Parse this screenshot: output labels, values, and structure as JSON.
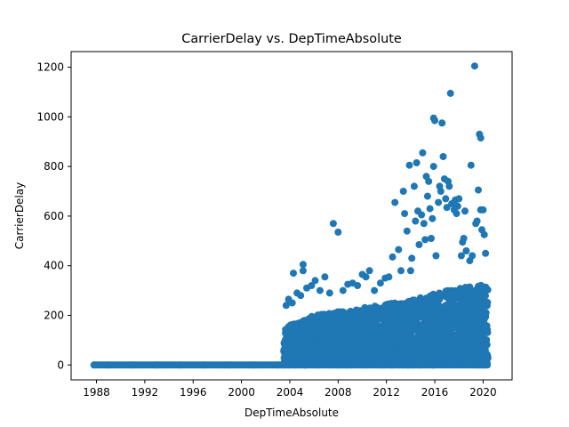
{
  "chart_data": {
    "type": "scatter",
    "title": "CarrierDelay vs. DepTimeAbsolute",
    "xlabel": "DepTimeAbsolute",
    "ylabel": "CarrierDelay",
    "xlim": [
      1985.9,
      2022.4
    ],
    "ylim": [
      -60.0,
      1263.0
    ],
    "xticks": [
      1988,
      1992,
      1996,
      2000,
      2004,
      2008,
      2012,
      2016,
      2020
    ],
    "xtick_labels": [
      "1988",
      "1992",
      "1996",
      "2000",
      "2004",
      "2008",
      "2012",
      "2016",
      "2020"
    ],
    "yticks": [
      0,
      200,
      400,
      600,
      800,
      1000,
      1200
    ],
    "ytick_labels": [
      "0",
      "200",
      "400",
      "600",
      "800",
      "1000",
      "1200"
    ],
    "grid": false,
    "legend": "none",
    "marker_color": "#1f77b4",
    "series": [
      {
        "points": [
          [
            1987.8,
            0
          ],
          [
            1989.0,
            0
          ],
          [
            1991.0,
            0
          ],
          [
            1993.0,
            0
          ],
          [
            1995.0,
            0
          ],
          [
            1997.0,
            0
          ],
          [
            1999.0,
            0
          ],
          [
            2001.0,
            0
          ],
          [
            2003.0,
            0
          ],
          [
            2003.5,
            0
          ],
          [
            2003.7,
            240
          ],
          [
            2003.9,
            265
          ],
          [
            2004.2,
            250
          ],
          [
            2004.3,
            370
          ],
          [
            2004.6,
            290
          ],
          [
            2004.9,
            280
          ],
          [
            2005.1,
            405
          ],
          [
            2005.1,
            380
          ],
          [
            2005.4,
            310
          ],
          [
            2005.8,
            320
          ],
          [
            2006.1,
            340
          ],
          [
            2006.5,
            300
          ],
          [
            2006.9,
            355
          ],
          [
            2007.3,
            290
          ],
          [
            2007.6,
            570
          ],
          [
            2008.0,
            535
          ],
          [
            2008.4,
            300
          ],
          [
            2008.8,
            325
          ],
          [
            2009.2,
            330
          ],
          [
            2009.6,
            320
          ],
          [
            2010.0,
            365
          ],
          [
            2010.3,
            355
          ],
          [
            2010.6,
            380
          ],
          [
            2011.0,
            300
          ],
          [
            2011.5,
            330
          ],
          [
            2011.9,
            350
          ],
          [
            2012.2,
            355
          ],
          [
            2012.5,
            435
          ],
          [
            2012.7,
            655
          ],
          [
            2013.0,
            465
          ],
          [
            2013.2,
            380
          ],
          [
            2013.4,
            700
          ],
          [
            2013.5,
            610
          ],
          [
            2013.7,
            540
          ],
          [
            2013.9,
            805
          ],
          [
            2014.0,
            380
          ],
          [
            2014.1,
            430
          ],
          [
            2014.3,
            720
          ],
          [
            2014.4,
            580
          ],
          [
            2014.5,
            815
          ],
          [
            2014.6,
            620
          ],
          [
            2014.7,
            485
          ],
          [
            2014.9,
            605
          ],
          [
            2015.0,
            855
          ],
          [
            2015.1,
            570
          ],
          [
            2015.2,
            505
          ],
          [
            2015.3,
            760
          ],
          [
            2015.4,
            680
          ],
          [
            2015.5,
            740
          ],
          [
            2015.6,
            630
          ],
          [
            2015.7,
            510
          ],
          [
            2015.8,
            590
          ],
          [
            2015.9,
            800
          ],
          [
            2015.9,
            995
          ],
          [
            2016.0,
            985
          ],
          [
            2016.1,
            440
          ],
          [
            2016.3,
            655
          ],
          [
            2016.4,
            720
          ],
          [
            2016.5,
            700
          ],
          [
            2016.6,
            975
          ],
          [
            2016.7,
            840
          ],
          [
            2016.8,
            750
          ],
          [
            2016.9,
            670
          ],
          [
            2017.0,
            635
          ],
          [
            2017.1,
            740
          ],
          [
            2017.2,
            720
          ],
          [
            2017.3,
            1095
          ],
          [
            2017.4,
            650
          ],
          [
            2017.6,
            625
          ],
          [
            2017.7,
            665
          ],
          [
            2017.8,
            610
          ],
          [
            2017.9,
            640
          ],
          [
            2018.0,
            670
          ],
          [
            2018.2,
            440
          ],
          [
            2018.3,
            495
          ],
          [
            2018.4,
            510
          ],
          [
            2018.5,
            620
          ],
          [
            2018.6,
            460
          ],
          [
            2018.9,
            420
          ],
          [
            2019.0,
            805
          ],
          [
            2019.1,
            440
          ],
          [
            2019.3,
            1205
          ],
          [
            2019.4,
            570
          ],
          [
            2019.5,
            580
          ],
          [
            2019.6,
            705
          ],
          [
            2019.7,
            930
          ],
          [
            2019.8,
            915
          ],
          [
            2019.8,
            625
          ],
          [
            2019.9,
            545
          ],
          [
            2020.0,
            625
          ],
          [
            2020.1,
            525
          ],
          [
            2020.2,
            450
          ]
        ]
      }
    ],
    "dense_band": {
      "x": [
        2003.5,
        2020.4
      ],
      "y_min": 0,
      "y_max_at": [
        [
          2003.5,
          150
        ],
        [
          2006,
          200
        ],
        [
          2010,
          230
        ],
        [
          2014,
          260
        ],
        [
          2017,
          300
        ],
        [
          2020.4,
          330
        ]
      ]
    }
  }
}
